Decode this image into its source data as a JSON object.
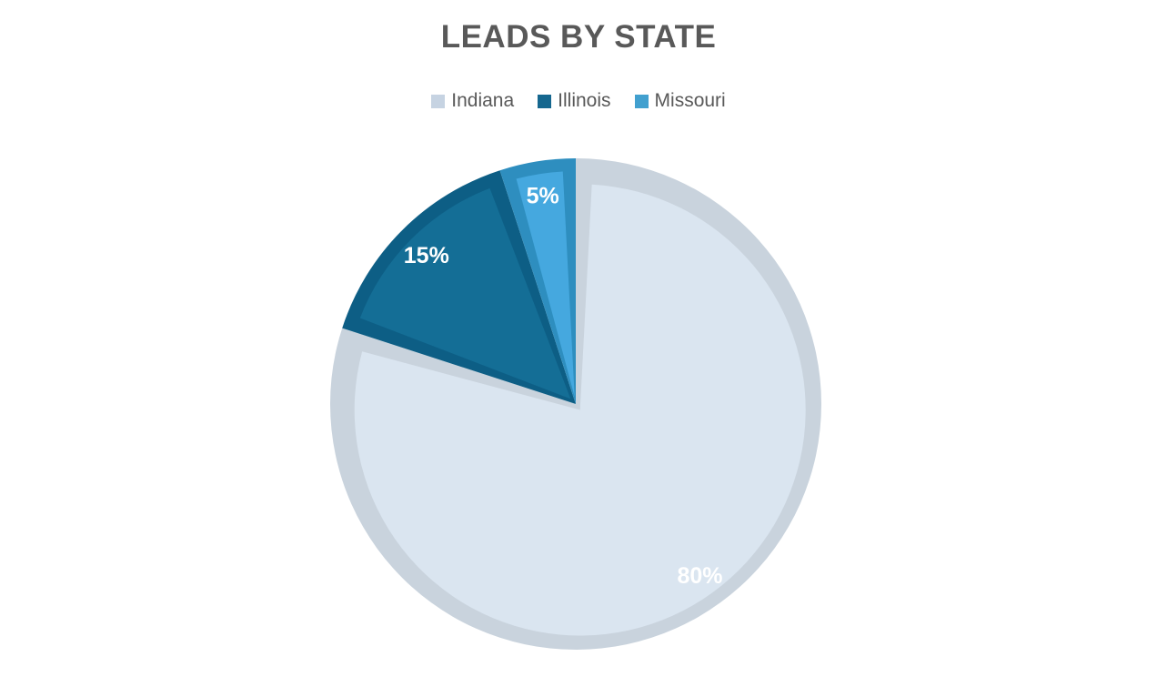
{
  "title": "LEADS BY STATE",
  "legend": {
    "items": [
      {
        "label": "Indiana",
        "color": "#c6d3e2"
      },
      {
        "label": "Illinois",
        "color": "#15678f"
      },
      {
        "label": "Missouri",
        "color": "#42a0cf"
      }
    ]
  },
  "chart_data": {
    "type": "pie",
    "title": "LEADS BY STATE",
    "categories": [
      "Indiana",
      "Illinois",
      "Missouri"
    ],
    "values": [
      80,
      15,
      5
    ],
    "data_labels": [
      "80%",
      "15%",
      "5%"
    ],
    "unit": "percent",
    "start_angle_deg": 0,
    "direction": "clockwise",
    "legend_position": "top",
    "slice_styles": [
      {
        "fill": "#dae5f0",
        "rim": "#c9d3dd"
      },
      {
        "fill": "#146e96",
        "rim": "#0d5e85"
      },
      {
        "fill": "#45a8df",
        "rim": "#2e8ebf"
      }
    ],
    "label_color": "#ffffff",
    "title_color": "#595959",
    "legend_text_color": "#595959",
    "background_color": "#ffffff"
  }
}
